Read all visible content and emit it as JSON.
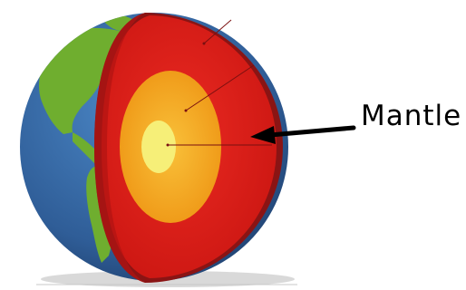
{
  "labels": {
    "mantle": "Mantle"
  },
  "colors": {
    "ocean": "#2f5d97",
    "land": "#6fae2f",
    "crust": "#8a1414",
    "mantle": "#df1b18",
    "outer_core": "#f2a91d",
    "inner_core": "#f6ef78",
    "arrow": "#000000",
    "background": "#ffffff"
  }
}
